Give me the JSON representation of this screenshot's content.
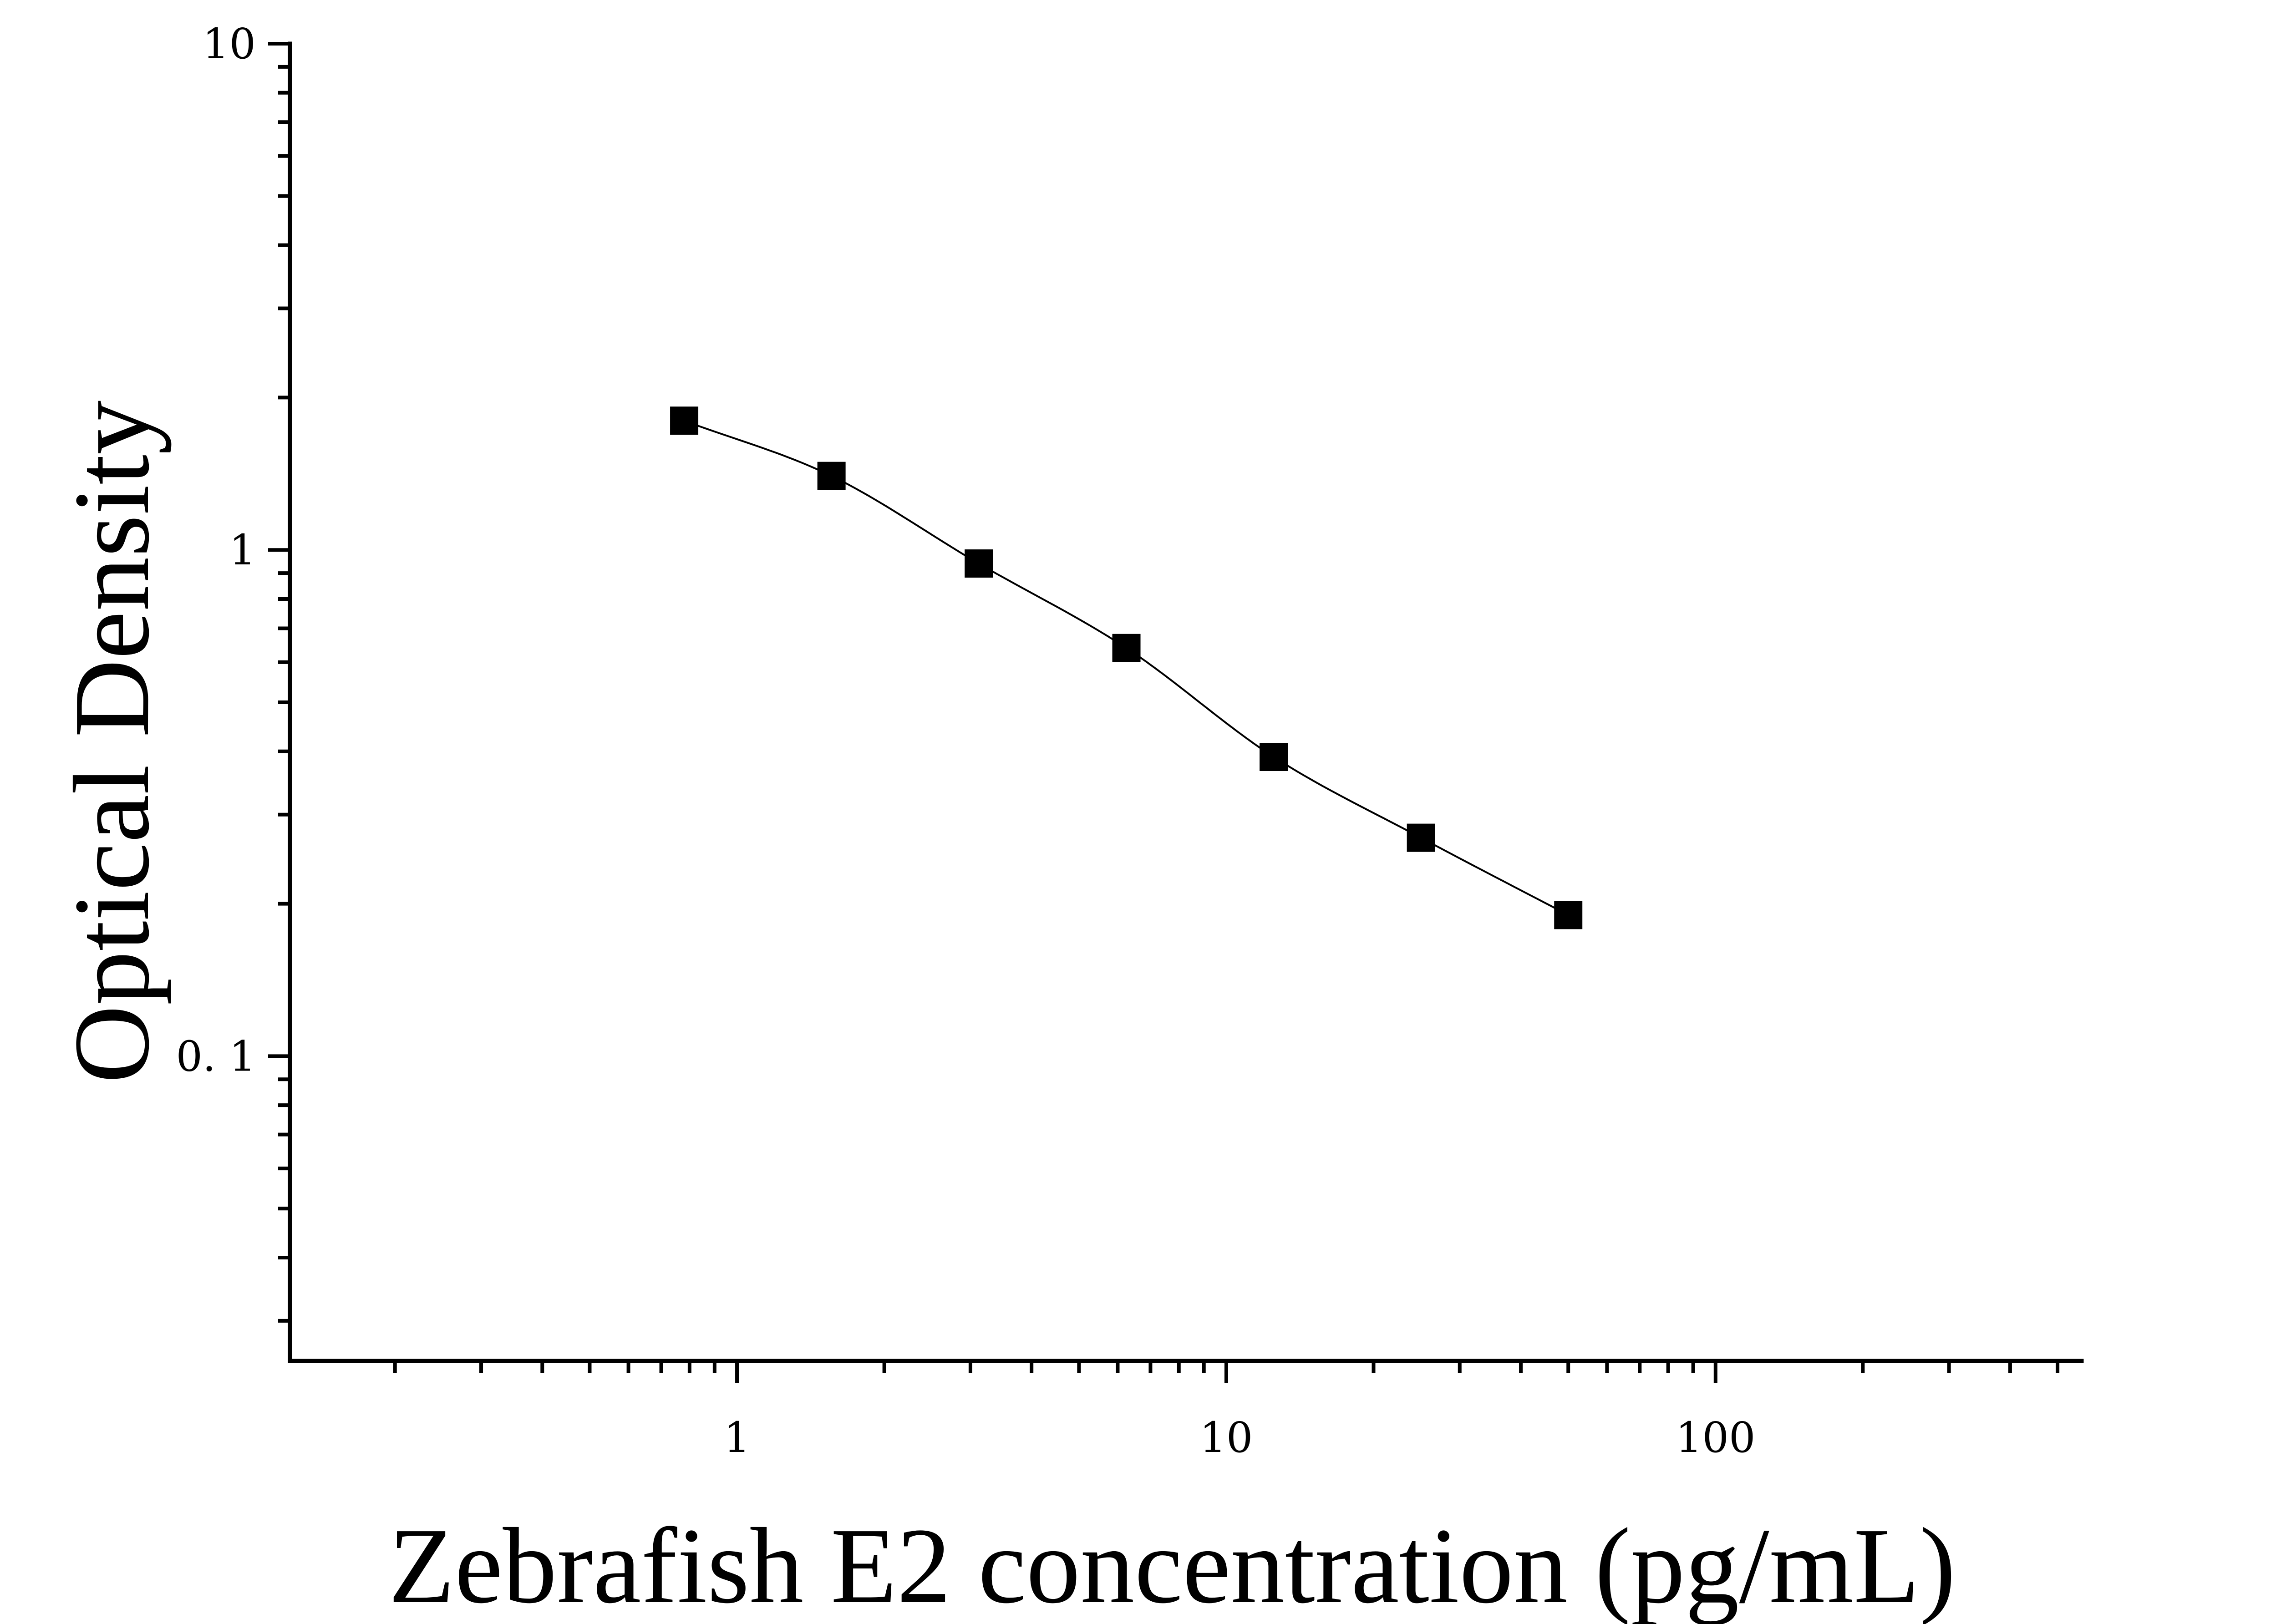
{
  "chart_data": {
    "type": "scatter",
    "title": "",
    "xlabel": "Zebrafish E2 concentration (pg/mL)",
    "ylabel": "Optical Density",
    "x_scale": "log",
    "y_scale": "log",
    "xlim": [
      0.122,
      560
    ],
    "ylim": [
      0.025,
      10
    ],
    "x_ticks": [
      {
        "value": 1,
        "label": "1"
      },
      {
        "value": 10,
        "label": "10"
      },
      {
        "value": 100,
        "label": "100"
      }
    ],
    "y_ticks": [
      {
        "value": 0.1,
        "label": "0. 1"
      },
      {
        "value": 1,
        "label": "1"
      },
      {
        "value": 10,
        "label": "10"
      }
    ],
    "grid": false,
    "legend": "none",
    "marker": "square",
    "marker_color": "#000000",
    "line_color": "#000000",
    "fit_curve": true,
    "series": [
      {
        "x": [
          0.78,
          1.56,
          3.12,
          6.25,
          12.5,
          25,
          50
        ],
        "y": [
          1.8,
          1.4,
          0.94,
          0.64,
          0.39,
          0.27,
          0.19
        ]
      }
    ]
  }
}
